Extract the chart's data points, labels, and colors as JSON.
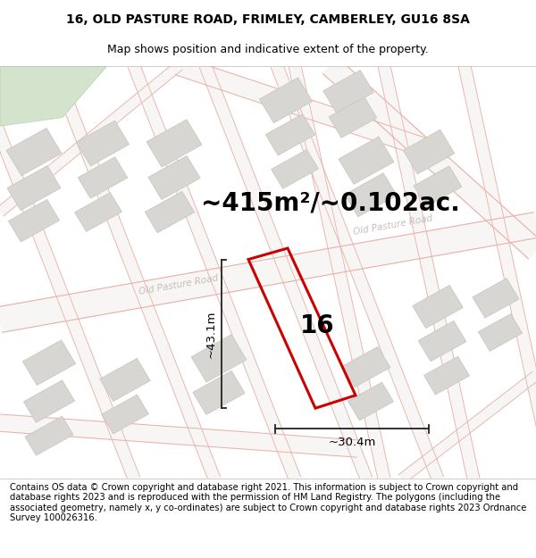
{
  "title_line1": "16, OLD PASTURE ROAD, FRIMLEY, CAMBERLEY, GU16 8SA",
  "title_line2": "Map shows position and indicative extent of the property.",
  "footer_text": "Contains OS data © Crown copyright and database right 2021. This information is subject to Crown copyright and database rights 2023 and is reproduced with the permission of HM Land Registry. The polygons (including the associated geometry, namely x, y co-ordinates) are subject to Crown copyright and database rights 2023 Ordnance Survey 100026316.",
  "area_label": "~415m²/~0.102ac.",
  "number_label": "16",
  "width_label": "~30.4m",
  "height_label": "~43.1m",
  "road_label1": "Old Pasture Road",
  "road_label2": "Old Pasture Road",
  "map_bg": "#f0eeea",
  "road_fill": "#f8f6f4",
  "road_edge": "#e8b0a8",
  "block_fill": "#d8d6d2",
  "block_edge": "#c8c4be",
  "green_fill": "#d4e4cc",
  "plot_edge_color": "#cc0000",
  "dim_color": "#222222",
  "title_fs": 10,
  "subtitle_fs": 9,
  "footer_fs": 7.2,
  "area_fs": 20,
  "number_fs": 20
}
